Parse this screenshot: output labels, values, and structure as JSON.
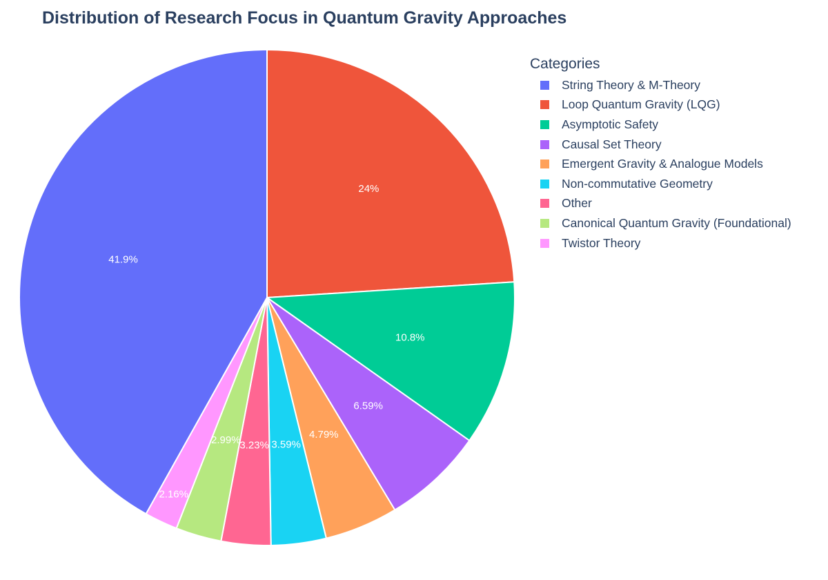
{
  "chart_data": {
    "type": "pie",
    "title": "Distribution of Research Focus in Quantum Gravity Approaches",
    "legend_title": "Categories",
    "legend_placement": "right",
    "direction": "clockwise",
    "start_angle": "top",
    "slices": [
      {
        "label": "String Theory & M-Theory",
        "value": 41.9,
        "text": "41.9%",
        "color": "#636efa"
      },
      {
        "label": "Loop Quantum Gravity (LQG)",
        "value": 24.0,
        "text": "24%",
        "color": "#ef553b"
      },
      {
        "label": "Asymptotic Safety",
        "value": 10.8,
        "text": "10.8%",
        "color": "#00cc96"
      },
      {
        "label": "Causal Set Theory",
        "value": 6.59,
        "text": "6.59%",
        "color": "#ab63fa"
      },
      {
        "label": "Emergent Gravity & Analogue Models",
        "value": 4.79,
        "text": "4.79%",
        "color": "#ffa15a"
      },
      {
        "label": "Non-commutative Geometry",
        "value": 3.59,
        "text": "3.59%",
        "color": "#19d3f3"
      },
      {
        "label": "Other",
        "value": 3.23,
        "text": "3.23%",
        "color": "#ff6692"
      },
      {
        "label": "Canonical Quantum Gravity (Foundational)",
        "value": 2.99,
        "text": "2.99%",
        "color": "#b6e880"
      },
      {
        "label": "Twistor Theory",
        "value": 2.16,
        "text": "2.16%",
        "color": "#ff97ff"
      }
    ],
    "legend_order": [
      0,
      1,
      2,
      3,
      4,
      5,
      6,
      7,
      8
    ],
    "slice_order": [
      1,
      2,
      3,
      4,
      5,
      6,
      7,
      8,
      0
    ]
  }
}
